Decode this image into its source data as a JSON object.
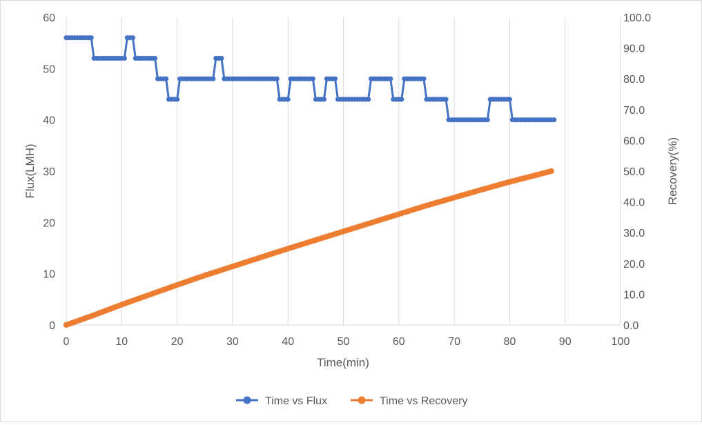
{
  "chart_data": {
    "type": "line",
    "title": "",
    "xlabel": "Time(min)",
    "ylabel": "Flux(LMH)",
    "y2label": "Recovery(%)",
    "xlim": [
      0,
      100
    ],
    "ylim": [
      0,
      60
    ],
    "y2lim": [
      0,
      100
    ],
    "x_ticks": [
      0,
      10,
      20,
      30,
      40,
      50,
      60,
      70,
      80,
      90,
      100
    ],
    "y_ticks": [
      0,
      10,
      20,
      30,
      40,
      50,
      60
    ],
    "y2_ticks": [
      "0.0",
      "10.0",
      "20.0",
      "30.0",
      "40.0",
      "50.0",
      "60.0",
      "70.0",
      "80.0",
      "90.0",
      "100.0"
    ],
    "grid": "vertical",
    "legend": "bottom",
    "colors": {
      "flux": "#4472c4",
      "recovery": "#ed7d31",
      "grid": "#d9d9d9",
      "text": "#595959"
    },
    "series": [
      {
        "name": "Time vs Flux",
        "axis": "left",
        "segments": [
          {
            "from": 0,
            "to": 4.5,
            "value": 56
          },
          {
            "from": 5,
            "to": 10.5,
            "value": 52
          },
          {
            "from": 11,
            "to": 12,
            "value": 56
          },
          {
            "from": 12.5,
            "to": 16,
            "value": 52
          },
          {
            "from": 16.5,
            "to": 18,
            "value": 48
          },
          {
            "from": 18.5,
            "to": 20,
            "value": 44
          },
          {
            "from": 20.5,
            "to": 26.5,
            "value": 48
          },
          {
            "from": 27,
            "to": 28,
            "value": 52
          },
          {
            "from": 28.5,
            "to": 38,
            "value": 48
          },
          {
            "from": 38.5,
            "to": 40,
            "value": 44
          },
          {
            "from": 40.5,
            "to": 44.5,
            "value": 48
          },
          {
            "from": 45,
            "to": 46.5,
            "value": 44
          },
          {
            "from": 47,
            "to": 48.5,
            "value": 48
          },
          {
            "from": 49,
            "to": 54.5,
            "value": 44
          },
          {
            "from": 55,
            "to": 58.5,
            "value": 48
          },
          {
            "from": 59,
            "to": 60.5,
            "value": 44
          },
          {
            "from": 61,
            "to": 64.5,
            "value": 48
          },
          {
            "from": 65,
            "to": 68.5,
            "value": 44
          },
          {
            "from": 69,
            "to": 76,
            "value": 40
          },
          {
            "from": 76.5,
            "to": 80,
            "value": 44
          },
          {
            "from": 80.5,
            "to": 88,
            "value": 40
          }
        ],
        "step": 0.5
      },
      {
        "name": "Time vs Recovery",
        "axis": "right",
        "x": [
          0,
          5,
          10,
          15,
          20,
          25,
          30,
          35,
          40,
          45,
          50,
          55,
          60,
          65,
          70,
          75,
          80,
          85,
          87.5
        ],
        "values": [
          0,
          3.2,
          6.6,
          9.8,
          13,
          16.1,
          19,
          21.9,
          24.8,
          27.6,
          30.4,
          33.2,
          36,
          38.8,
          41.4,
          44,
          46.5,
          48.8,
          50
        ],
        "step": 0.5
      }
    ]
  }
}
